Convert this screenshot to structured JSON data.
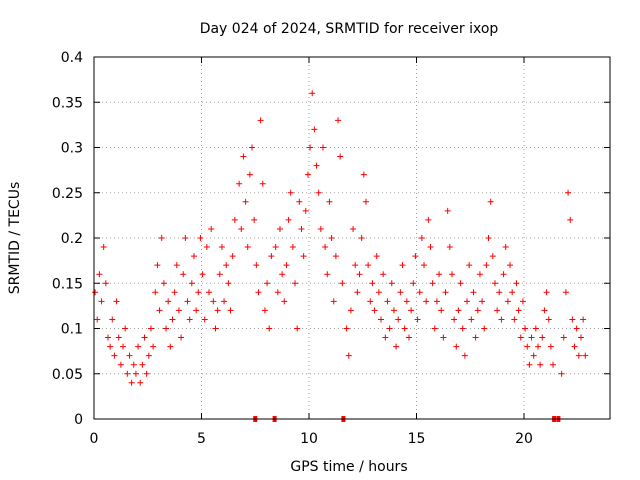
{
  "chart_data": {
    "type": "scatter",
    "title": "Day 024 of 2024, SRMTID for receiver ixop",
    "xlabel": "GPS time / hours",
    "ylabel": "SRMTID / TECUs",
    "xlim": [
      0,
      24
    ],
    "ylim": [
      0,
      0.4
    ],
    "xticks": [
      0,
      5,
      10,
      15,
      20
    ],
    "xtick_labels": [
      "0",
      "5",
      "10",
      "15",
      "20"
    ],
    "yticks": [
      0,
      0.05,
      0.1,
      0.15,
      0.2,
      0.25,
      0.3,
      0.35,
      0.4
    ],
    "ytick_labels": [
      "0",
      "0.05",
      "0.1",
      "0.15",
      "0.2",
      "0.25",
      "0.3",
      "0.35",
      "0.4"
    ],
    "grid": true,
    "marker": "+",
    "marker_color": "#ff0000",
    "zero_line_markers_x": [
      7.5,
      8.4,
      11.6,
      21.4,
      21.6
    ],
    "series": [
      {
        "name": "SRMTID",
        "points": [
          [
            0.05,
            0.14
          ],
          [
            0.15,
            0.11
          ],
          [
            0.25,
            0.16
          ],
          [
            0.35,
            0.13
          ],
          [
            0.45,
            0.19
          ],
          [
            0.55,
            0.15
          ],
          [
            0.65,
            0.09
          ],
          [
            0.75,
            0.08
          ],
          [
            0.85,
            0.11
          ],
          [
            0.95,
            0.07
          ],
          [
            1.05,
            0.13
          ],
          [
            1.15,
            0.09
          ],
          [
            1.25,
            0.06
          ],
          [
            1.35,
            0.08
          ],
          [
            1.45,
            0.1
          ],
          [
            1.55,
            0.05
          ],
          [
            1.65,
            0.07
          ],
          [
            1.75,
            0.04
          ],
          [
            1.85,
            0.06
          ],
          [
            1.95,
            0.05
          ],
          [
            2.05,
            0.08
          ],
          [
            2.15,
            0.04
          ],
          [
            2.25,
            0.06
          ],
          [
            2.35,
            0.09
          ],
          [
            2.45,
            0.05
          ],
          [
            2.55,
            0.07
          ],
          [
            2.65,
            0.1
          ],
          [
            2.75,
            0.08
          ],
          [
            2.85,
            0.14
          ],
          [
            2.95,
            0.17
          ],
          [
            3.05,
            0.12
          ],
          [
            3.15,
            0.2
          ],
          [
            3.25,
            0.15
          ],
          [
            3.35,
            0.1
          ],
          [
            3.45,
            0.13
          ],
          [
            3.55,
            0.08
          ],
          [
            3.65,
            0.11
          ],
          [
            3.75,
            0.14
          ],
          [
            3.85,
            0.17
          ],
          [
            3.95,
            0.12
          ],
          [
            4.05,
            0.09
          ],
          [
            4.15,
            0.16
          ],
          [
            4.25,
            0.2
          ],
          [
            4.35,
            0.13
          ],
          [
            4.45,
            0.11
          ],
          [
            4.55,
            0.15
          ],
          [
            4.65,
            0.18
          ],
          [
            4.75,
            0.12
          ],
          [
            4.85,
            0.14
          ],
          [
            4.95,
            0.2
          ],
          [
            5.05,
            0.16
          ],
          [
            5.15,
            0.11
          ],
          [
            5.25,
            0.19
          ],
          [
            5.35,
            0.14
          ],
          [
            5.45,
            0.21
          ],
          [
            5.55,
            0.13
          ],
          [
            5.65,
            0.1
          ],
          [
            5.75,
            0.12
          ],
          [
            5.85,
            0.16
          ],
          [
            5.95,
            0.19
          ],
          [
            6.05,
            0.13
          ],
          [
            6.15,
            0.17
          ],
          [
            6.25,
            0.15
          ],
          [
            6.35,
            0.12
          ],
          [
            6.45,
            0.18
          ],
          [
            6.55,
            0.22
          ],
          [
            6.75,
            0.26
          ],
          [
            6.85,
            0.21
          ],
          [
            6.95,
            0.29
          ],
          [
            7.05,
            0.24
          ],
          [
            7.15,
            0.19
          ],
          [
            7.25,
            0.27
          ],
          [
            7.35,
            0.3
          ],
          [
            7.45,
            0.22
          ],
          [
            7.55,
            0.17
          ],
          [
            7.65,
            0.14
          ],
          [
            7.75,
            0.33
          ],
          [
            7.85,
            0.26
          ],
          [
            7.95,
            0.12
          ],
          [
            8.05,
            0.15
          ],
          [
            8.15,
            0.1
          ],
          [
            8.25,
            0.18
          ],
          [
            8.45,
            0.19
          ],
          [
            8.55,
            0.14
          ],
          [
            8.65,
            0.21
          ],
          [
            8.75,
            0.16
          ],
          [
            8.85,
            0.13
          ],
          [
            8.95,
            0.17
          ],
          [
            9.05,
            0.22
          ],
          [
            9.15,
            0.25
          ],
          [
            9.25,
            0.19
          ],
          [
            9.35,
            0.15
          ],
          [
            9.45,
            0.1
          ],
          [
            9.55,
            0.24
          ],
          [
            9.65,
            0.21
          ],
          [
            9.75,
            0.18
          ],
          [
            9.85,
            0.23
          ],
          [
            9.95,
            0.27
          ],
          [
            10.05,
            0.3
          ],
          [
            10.15,
            0.36
          ],
          [
            10.25,
            0.32
          ],
          [
            10.35,
            0.28
          ],
          [
            10.45,
            0.25
          ],
          [
            10.55,
            0.21
          ],
          [
            10.65,
            0.3
          ],
          [
            10.75,
            0.19
          ],
          [
            10.85,
            0.16
          ],
          [
            10.95,
            0.24
          ],
          [
            11.05,
            0.2
          ],
          [
            11.15,
            0.13
          ],
          [
            11.25,
            0.18
          ],
          [
            11.35,
            0.33
          ],
          [
            11.45,
            0.29
          ],
          [
            11.55,
            0.15
          ],
          [
            11.75,
            0.1
          ],
          [
            11.85,
            0.07
          ],
          [
            11.95,
            0.12
          ],
          [
            12.05,
            0.21
          ],
          [
            12.15,
            0.17
          ],
          [
            12.25,
            0.14
          ],
          [
            12.35,
            0.16
          ],
          [
            12.45,
            0.2
          ],
          [
            12.55,
            0.27
          ],
          [
            12.65,
            0.24
          ],
          [
            12.75,
            0.17
          ],
          [
            12.85,
            0.13
          ],
          [
            12.95,
            0.15
          ],
          [
            13.05,
            0.12
          ],
          [
            13.15,
            0.18
          ],
          [
            13.25,
            0.14
          ],
          [
            13.35,
            0.11
          ],
          [
            13.45,
            0.16
          ],
          [
            13.55,
            0.09
          ],
          [
            13.65,
            0.13
          ],
          [
            13.75,
            0.1
          ],
          [
            13.85,
            0.15
          ],
          [
            13.95,
            0.12
          ],
          [
            14.05,
            0.08
          ],
          [
            14.15,
            0.11
          ],
          [
            14.25,
            0.14
          ],
          [
            14.35,
            0.17
          ],
          [
            14.45,
            0.1
          ],
          [
            14.55,
            0.13
          ],
          [
            14.65,
            0.09
          ],
          [
            14.75,
            0.12
          ],
          [
            14.85,
            0.15
          ],
          [
            14.95,
            0.18
          ],
          [
            15.05,
            0.11
          ],
          [
            15.15,
            0.14
          ],
          [
            15.25,
            0.2
          ],
          [
            15.35,
            0.17
          ],
          [
            15.45,
            0.13
          ],
          [
            15.55,
            0.22
          ],
          [
            15.65,
            0.19
          ],
          [
            15.75,
            0.15
          ],
          [
            15.85,
            0.1
          ],
          [
            15.95,
            0.13
          ],
          [
            16.05,
            0.16
          ],
          [
            16.15,
            0.12
          ],
          [
            16.25,
            0.09
          ],
          [
            16.35,
            0.14
          ],
          [
            16.45,
            0.23
          ],
          [
            16.55,
            0.19
          ],
          [
            16.65,
            0.16
          ],
          [
            16.75,
            0.11
          ],
          [
            16.85,
            0.08
          ],
          [
            16.95,
            0.12
          ],
          [
            17.05,
            0.15
          ],
          [
            17.15,
            0.1
          ],
          [
            17.25,
            0.07
          ],
          [
            17.35,
            0.13
          ],
          [
            17.45,
            0.17
          ],
          [
            17.55,
            0.11
          ],
          [
            17.65,
            0.14
          ],
          [
            17.75,
            0.09
          ],
          [
            17.85,
            0.12
          ],
          [
            17.95,
            0.16
          ],
          [
            18.05,
            0.13
          ],
          [
            18.15,
            0.1
          ],
          [
            18.25,
            0.17
          ],
          [
            18.35,
            0.2
          ],
          [
            18.45,
            0.24
          ],
          [
            18.55,
            0.18
          ],
          [
            18.65,
            0.15
          ],
          [
            18.75,
            0.12
          ],
          [
            18.85,
            0.14
          ],
          [
            18.95,
            0.11
          ],
          [
            19.05,
            0.16
          ],
          [
            19.15,
            0.19
          ],
          [
            19.25,
            0.13
          ],
          [
            19.35,
            0.17
          ],
          [
            19.45,
            0.14
          ],
          [
            19.55,
            0.11
          ],
          [
            19.65,
            0.15
          ],
          [
            19.75,
            0.12
          ],
          [
            19.85,
            0.09
          ],
          [
            19.95,
            0.13
          ],
          [
            20.05,
            0.1
          ],
          [
            20.15,
            0.08
          ],
          [
            20.25,
            0.06
          ],
          [
            20.35,
            0.09
          ],
          [
            20.45,
            0.07
          ],
          [
            20.55,
            0.1
          ],
          [
            20.65,
            0.08
          ],
          [
            20.75,
            0.06
          ],
          [
            20.85,
            0.09
          ],
          [
            20.95,
            0.12
          ],
          [
            21.05,
            0.14
          ],
          [
            21.15,
            0.11
          ],
          [
            21.25,
            0.08
          ],
          [
            21.35,
            0.06
          ],
          [
            21.75,
            0.05
          ],
          [
            21.85,
            0.09
          ],
          [
            21.95,
            0.14
          ],
          [
            22.05,
            0.25
          ],
          [
            22.15,
            0.22
          ],
          [
            22.25,
            0.11
          ],
          [
            22.35,
            0.08
          ],
          [
            22.45,
            0.1
          ],
          [
            22.55,
            0.07
          ],
          [
            22.65,
            0.09
          ],
          [
            22.75,
            0.11
          ],
          [
            22.85,
            0.07
          ]
        ]
      }
    ]
  }
}
